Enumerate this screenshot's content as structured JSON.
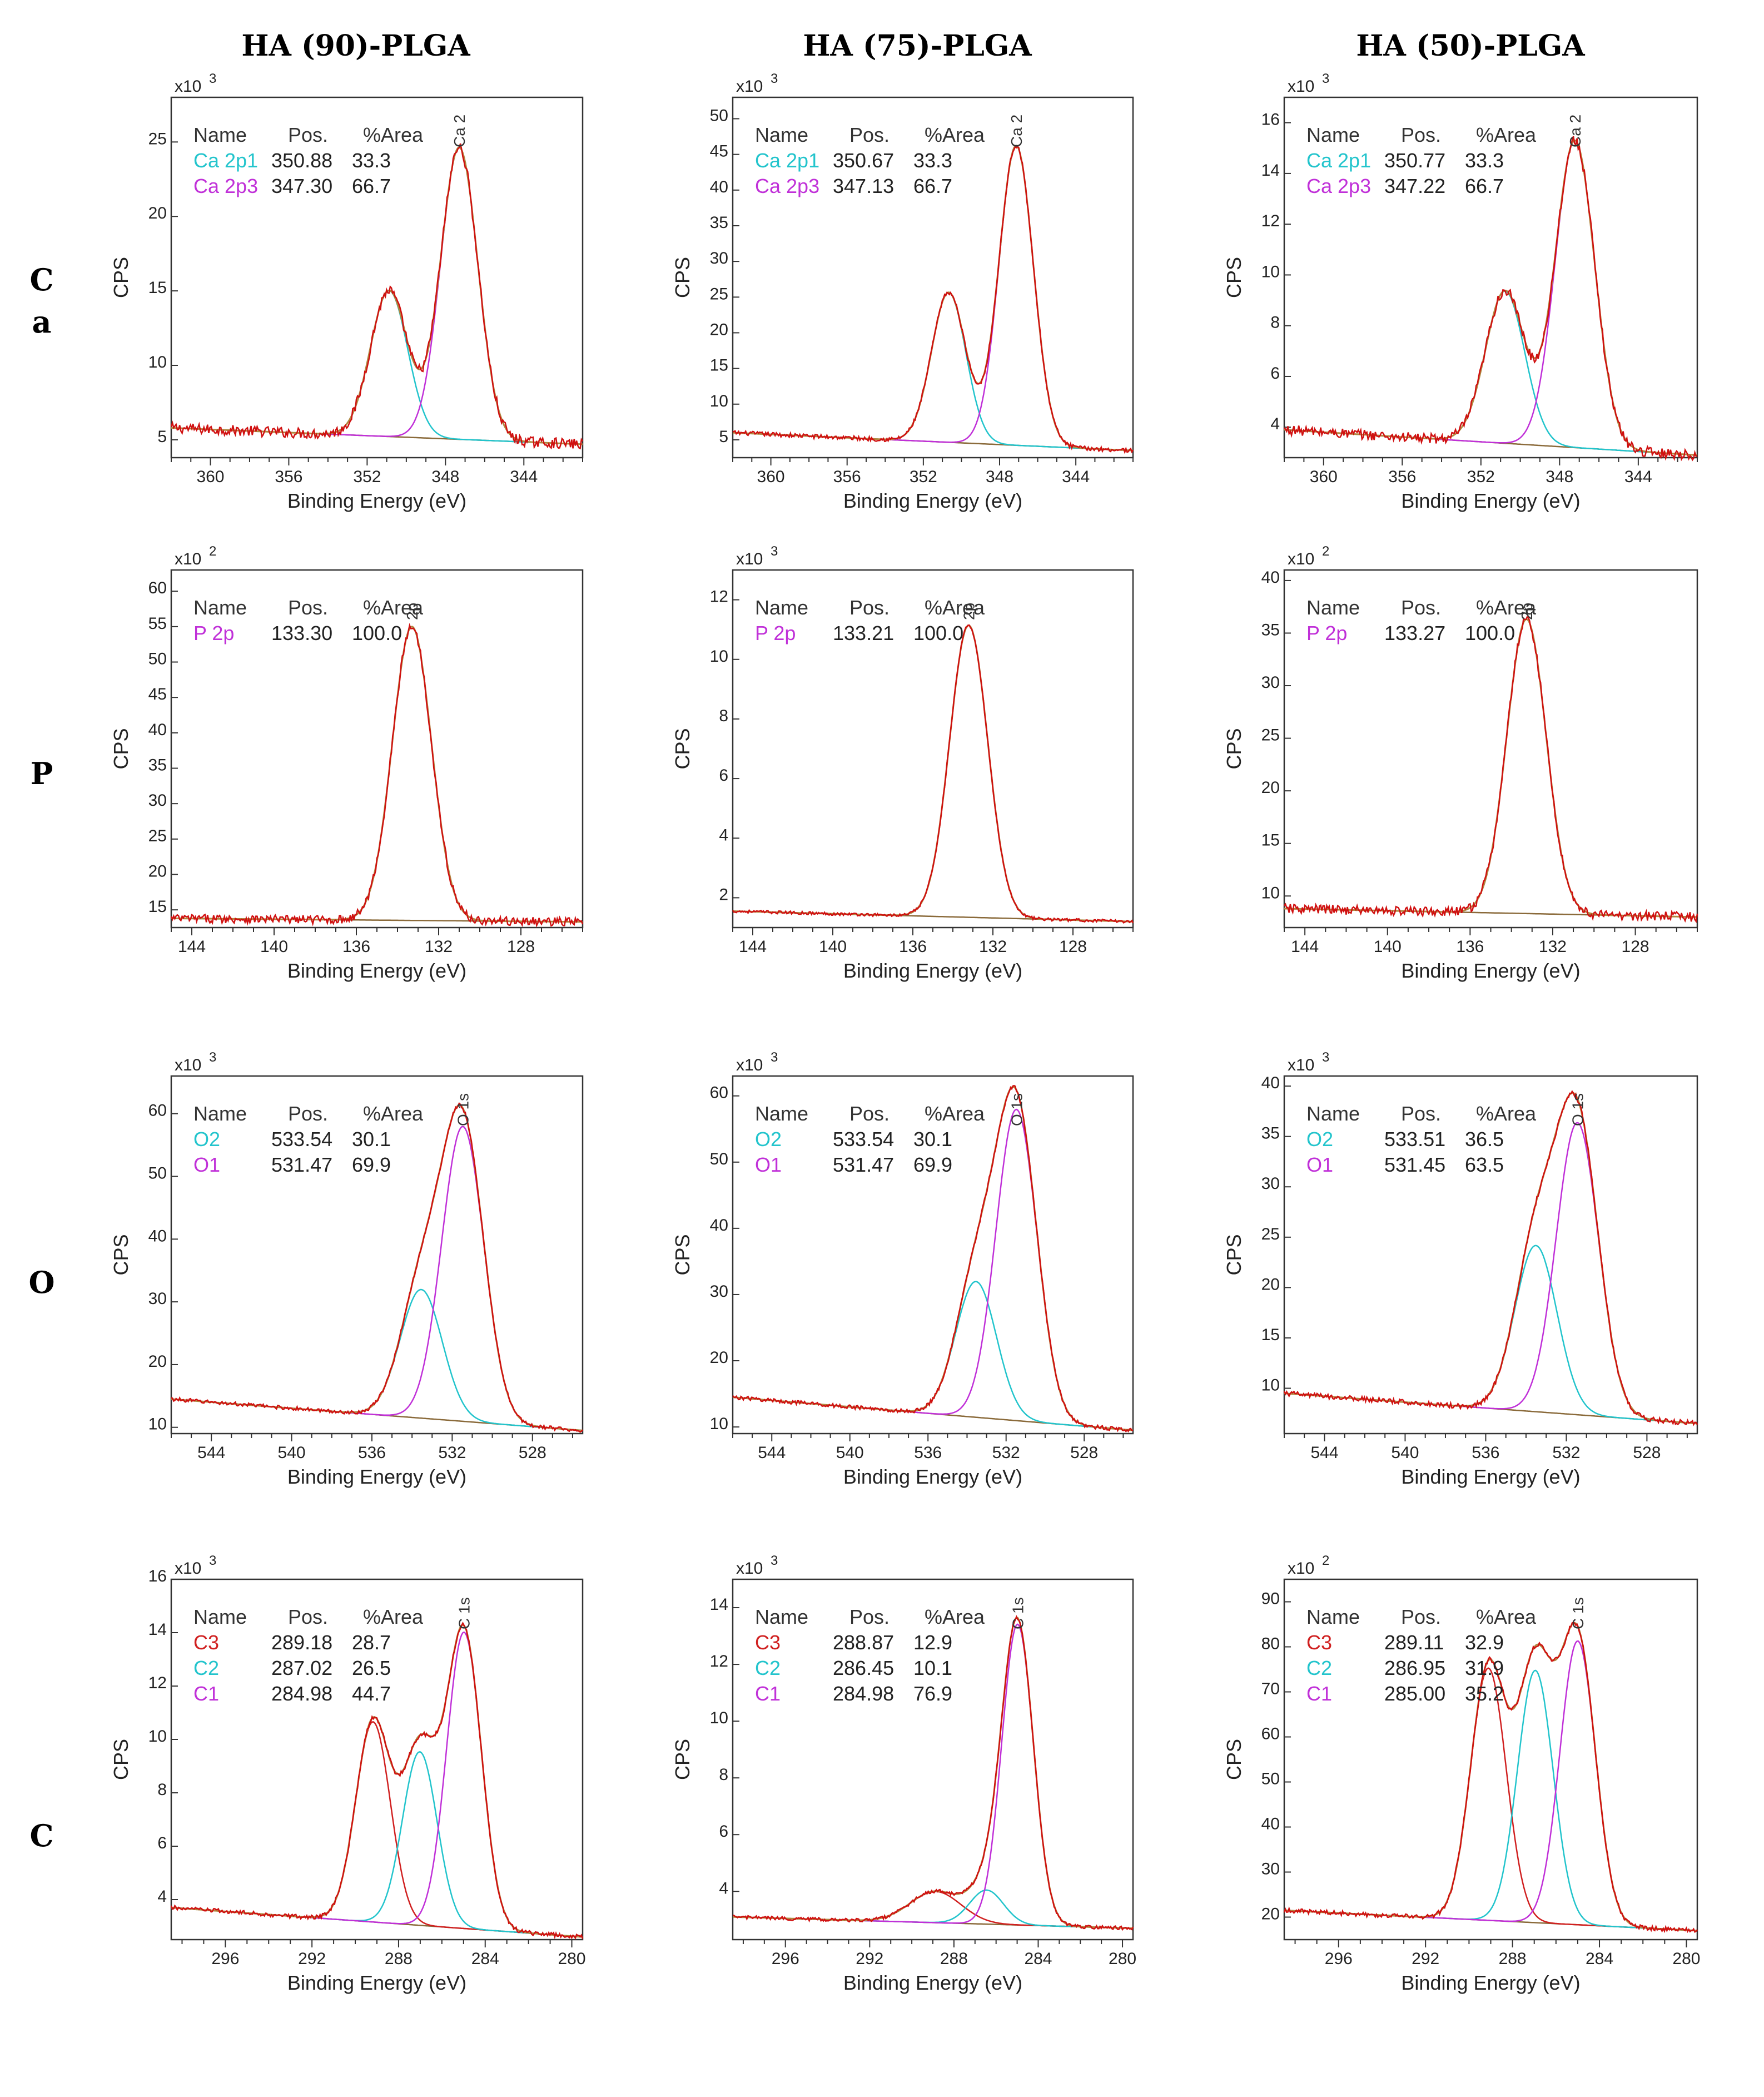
{
  "column_titles": [
    "HA (90)-PLGA",
    "HA (75)-PLGA",
    "HA (50)-PLGA"
  ],
  "row_labels": [
    [
      "C",
      "a"
    ],
    [
      "P"
    ],
    [
      "O"
    ],
    [
      "C"
    ]
  ],
  "colors": {
    "background": "#ffffff",
    "data": "#d01010",
    "envelope": "#b08840",
    "baseline": "#8a6a3a",
    "cyan": "#22c4cc",
    "magenta": "#c030d8",
    "red": "#d02020",
    "axis": "#333333",
    "header": "#333333"
  },
  "legend_headers": [
    "Name",
    "Pos.",
    "%Area"
  ],
  "chart_data": [
    {
      "id": "ca-90",
      "row": 0,
      "col": 0,
      "type": "line",
      "xlabel": "Binding Energy (eV)",
      "ylabel": "CPS",
      "multiplier": "x10",
      "exp": "3",
      "xlim": [
        362,
        341
      ],
      "xticks": [
        360,
        356,
        352,
        348,
        344
      ],
      "ylim": [
        3.8,
        28
      ],
      "yticks": [
        5,
        10,
        15,
        20,
        25
      ],
      "peak_label": "Ca 2",
      "peak_label_x": 347.3,
      "baseline": [
        5.8,
        4.7
      ],
      "noise": 0.35,
      "components": [
        {
          "name": "Ca 2p1",
          "pos": "350.88",
          "area": "33.3",
          "color": "#22c4cc",
          "center": 350.88,
          "height": 9.8,
          "width": 0.95
        },
        {
          "name": "Ca 2p3",
          "pos": "347.30",
          "area": "66.7",
          "color": "#c030d8",
          "center": 347.3,
          "height": 19.6,
          "width": 0.95
        }
      ]
    },
    {
      "id": "ca-75",
      "row": 0,
      "col": 1,
      "type": "line",
      "xlabel": "Binding Energy (eV)",
      "ylabel": "CPS",
      "multiplier": "x10",
      "exp": "3",
      "xlim": [
        362,
        341
      ],
      "xticks": [
        360,
        356,
        352,
        348,
        344
      ],
      "ylim": [
        2.5,
        53
      ],
      "yticks": [
        5,
        10,
        15,
        20,
        25,
        30,
        35,
        40,
        45,
        50
      ],
      "peak_label": "Ca 2",
      "peak_label_x": 347.13,
      "baseline": [
        6,
        3.5
      ],
      "noise": 0.3,
      "components": [
        {
          "name": "Ca 2p1",
          "pos": "350.67",
          "area": "33.3",
          "color": "#22c4cc",
          "center": 350.67,
          "height": 21,
          "width": 0.9
        },
        {
          "name": "Ca 2p3",
          "pos": "347.13",
          "area": "66.7",
          "color": "#c030d8",
          "center": 347.13,
          "height": 42,
          "width": 0.9
        }
      ]
    },
    {
      "id": "ca-50",
      "row": 0,
      "col": 2,
      "type": "line",
      "xlabel": "Binding Energy (eV)",
      "ylabel": "CPS",
      "multiplier": "x10",
      "exp": "3",
      "xlim": [
        362,
        341
      ],
      "xticks": [
        360,
        356,
        352,
        348,
        344
      ],
      "ylim": [
        2.8,
        17
      ],
      "yticks": [
        4,
        6,
        8,
        10,
        12,
        14,
        16
      ],
      "peak_label": "Ca 2",
      "peak_label_x": 347.22,
      "baseline": [
        3.9,
        2.9
      ],
      "noise": 0.2,
      "components": [
        {
          "name": "Ca 2p1",
          "pos": "350.77",
          "area": "33.3",
          "color": "#22c4cc",
          "center": 350.77,
          "height": 6.0,
          "width": 1.0
        },
        {
          "name": "Ca 2p3",
          "pos": "347.22",
          "area": "66.7",
          "color": "#c030d8",
          "center": 347.22,
          "height": 12.1,
          "width": 1.0
        }
      ]
    },
    {
      "id": "p-90",
      "row": 1,
      "col": 0,
      "type": "line",
      "xlabel": "Binding Energy (eV)",
      "ylabel": "CPS",
      "multiplier": "x10",
      "exp": "2",
      "xlim": [
        145,
        125
      ],
      "xticks": [
        144,
        140,
        136,
        132,
        128
      ],
      "ylim": [
        12.5,
        63
      ],
      "yticks": [
        15,
        20,
        25,
        30,
        35,
        40,
        45,
        50,
        55,
        60
      ],
      "peak_label": "2p",
      "peak_label_x": 133.3,
      "baseline": [
        13.8,
        13.3
      ],
      "noise": 0.6,
      "components": [
        {
          "name": "P 2p",
          "pos": "133.30",
          "area": "100.0",
          "color": "#c030d8",
          "center": 133.3,
          "height": 41.5,
          "width": 0.95
        }
      ]
    },
    {
      "id": "p-75",
      "row": 1,
      "col": 1,
      "type": "line",
      "xlabel": "Binding Energy (eV)",
      "ylabel": "CPS",
      "multiplier": "x10",
      "exp": "3",
      "xlim": [
        145,
        125
      ],
      "xticks": [
        144,
        140,
        136,
        132,
        128
      ],
      "ylim": [
        1.0,
        13
      ],
      "yticks": [
        2,
        4,
        6,
        8,
        10,
        12
      ],
      "peak_label": "2p",
      "peak_label_x": 133.21,
      "baseline": [
        1.55,
        1.2
      ],
      "noise": 0.05,
      "components": [
        {
          "name": "P 2p",
          "pos": "133.21",
          "area": "100.0",
          "color": "#c030d8",
          "center": 133.21,
          "height": 9.8,
          "width": 0.95
        }
      ]
    },
    {
      "id": "p-50",
      "row": 1,
      "col": 2,
      "type": "line",
      "xlabel": "Binding Energy (eV)",
      "ylabel": "CPS",
      "multiplier": "x10",
      "exp": "2",
      "xlim": [
        145,
        125
      ],
      "xticks": [
        144,
        140,
        136,
        132,
        128
      ],
      "ylim": [
        7.0,
        41
      ],
      "yticks": [
        10,
        15,
        20,
        25,
        30,
        35,
        40
      ],
      "peak_label": "2p",
      "peak_label_x": 133.27,
      "baseline": [
        8.8,
        8.0
      ],
      "noise": 0.45,
      "components": [
        {
          "name": "P 2p",
          "pos": "133.27",
          "area": "100.0",
          "color": "#c030d8",
          "center": 133.27,
          "height": 28,
          "width": 0.95
        }
      ]
    },
    {
      "id": "o-90",
      "row": 2,
      "col": 0,
      "type": "line",
      "xlabel": "Binding Energy (eV)",
      "ylabel": "CPS",
      "multiplier": "x10",
      "exp": "3",
      "xlim": [
        546,
        525.5
      ],
      "xticks": [
        544,
        540,
        536,
        532,
        528
      ],
      "ylim": [
        9,
        66
      ],
      "yticks": [
        10,
        20,
        30,
        40,
        50,
        60
      ],
      "peak_label": "O 1s",
      "peak_label_x": 531.47,
      "baseline": [
        14.5,
        9.5
      ],
      "noise": 0.3,
      "components": [
        {
          "name": "O2",
          "pos": "533.54",
          "area": "30.1",
          "color": "#22c4cc",
          "center": 533.54,
          "height": 20.5,
          "width": 1.05
        },
        {
          "name": "O1",
          "pos": "531.47",
          "area": "69.9",
          "color": "#c030d8",
          "center": 531.47,
          "height": 47,
          "width": 1.05
        }
      ]
    },
    {
      "id": "o-75",
      "row": 2,
      "col": 1,
      "type": "line",
      "xlabel": "Binding Energy (eV)",
      "ylabel": "CPS",
      "multiplier": "x10",
      "exp": "3",
      "xlim": [
        546,
        525.5
      ],
      "xticks": [
        544,
        540,
        536,
        532,
        528
      ],
      "ylim": [
        9,
        63
      ],
      "yticks": [
        10,
        20,
        30,
        40,
        50,
        60
      ],
      "peak_label": "O 1s",
      "peak_label_x": 531.47,
      "baseline": [
        14.5,
        9.5
      ],
      "noise": 0.3,
      "components": [
        {
          "name": "O2",
          "pos": "533.54",
          "area": "30.1",
          "color": "#22c4cc",
          "center": 533.54,
          "height": 20.5,
          "width": 1.05
        },
        {
          "name": "O1",
          "pos": "531.47",
          "area": "69.9",
          "color": "#c030d8",
          "center": 531.47,
          "height": 47,
          "width": 1.05
        }
      ]
    },
    {
      "id": "o-50",
      "row": 2,
      "col": 2,
      "type": "line",
      "xlabel": "Binding Energy (eV)",
      "ylabel": "CPS",
      "multiplier": "x10",
      "exp": "3",
      "xlim": [
        546,
        525.5
      ],
      "xticks": [
        544,
        540,
        536,
        532,
        528
      ],
      "ylim": [
        5.5,
        41
      ],
      "yticks": [
        10,
        15,
        20,
        25,
        30,
        35,
        40
      ],
      "peak_label": "O 1s",
      "peak_label_x": 531.45,
      "baseline": [
        9.5,
        6.5
      ],
      "noise": 0.25,
      "components": [
        {
          "name": "O2",
          "pos": "533.51",
          "area": "36.5",
          "color": "#22c4cc",
          "center": 533.51,
          "height": 16.5,
          "width": 1.05
        },
        {
          "name": "O1",
          "pos": "531.45",
          "area": "63.5",
          "color": "#c030d8",
          "center": 531.45,
          "height": 29,
          "width": 1.05
        }
      ]
    },
    {
      "id": "c-90",
      "row": 3,
      "col": 0,
      "type": "line",
      "xlabel": "Binding Energy (eV)",
      "ylabel": "CPS",
      "multiplier": "x10",
      "exp": "3",
      "xlim": [
        298.5,
        279.5
      ],
      "xticks": [
        296,
        292,
        288,
        284,
        280
      ],
      "ylim": [
        2.5,
        16
      ],
      "yticks": [
        4,
        6,
        8,
        10,
        12,
        14,
        16
      ],
      "peak_label": "C 1s",
      "peak_label_x": 284.98,
      "baseline": [
        3.7,
        2.6
      ],
      "noise": 0.08,
      "components": [
        {
          "name": "C3",
          "pos": "289.18",
          "area": "28.7",
          "color": "#d02020",
          "center": 289.18,
          "height": 7.5,
          "width": 0.8
        },
        {
          "name": "C2",
          "pos": "287.02",
          "area": "26.5",
          "color": "#22c4cc",
          "center": 287.02,
          "height": 6.5,
          "width": 0.8
        },
        {
          "name": "C1",
          "pos": "284.98",
          "area": "44.7",
          "color": "#c030d8",
          "center": 284.98,
          "height": 11.1,
          "width": 0.8
        }
      ]
    },
    {
      "id": "c-75",
      "row": 3,
      "col": 1,
      "type": "line",
      "xlabel": "Binding Energy (eV)",
      "ylabel": "CPS",
      "multiplier": "x10",
      "exp": "3",
      "xlim": [
        298.5,
        279.5
      ],
      "xticks": [
        296,
        292,
        288,
        284,
        280
      ],
      "ylim": [
        2.3,
        15
      ],
      "yticks": [
        4,
        6,
        8,
        10,
        12,
        14
      ],
      "peak_label": "C 1s",
      "peak_label_x": 284.98,
      "baseline": [
        3.1,
        2.7
      ],
      "noise": 0.06,
      "components": [
        {
          "name": "C3",
          "pos": "288.87",
          "area": "12.9",
          "color": "#d02020",
          "center": 288.87,
          "height": 1.1,
          "width": 1.2
        },
        {
          "name": "C2",
          "pos": "286.45",
          "area": "10.1",
          "color": "#22c4cc",
          "center": 286.45,
          "height": 1.2,
          "width": 0.8
        },
        {
          "name": "C1",
          "pos": "284.98",
          "area": "76.9",
          "color": "#c030d8",
          "center": 284.98,
          "height": 10.6,
          "width": 0.75
        }
      ]
    },
    {
      "id": "c-50",
      "row": 3,
      "col": 2,
      "type": "line",
      "xlabel": "Binding Energy (eV)",
      "ylabel": "CPS",
      "multiplier": "x10",
      "exp": "2",
      "xlim": [
        298.5,
        279.5
      ],
      "xticks": [
        296,
        292,
        288,
        284,
        280
      ],
      "ylim": [
        15,
        95
      ],
      "yticks": [
        20,
        30,
        40,
        50,
        60,
        70,
        80,
        90
      ],
      "peak_label": "C 1s",
      "peak_label_x": 285.0,
      "baseline": [
        21.5,
        17
      ],
      "noise": 0.5,
      "components": [
        {
          "name": "C3",
          "pos": "289.11",
          "area": "32.9",
          "color": "#d02020",
          "center": 289.11,
          "height": 56,
          "width": 0.82
        },
        {
          "name": "C2",
          "pos": "286.95",
          "area": "31.9",
          "color": "#22c4cc",
          "center": 286.95,
          "height": 56,
          "width": 0.82
        },
        {
          "name": "C1",
          "pos": "285.00",
          "area": "35.2",
          "color": "#c030d8",
          "center": 285.0,
          "height": 63,
          "width": 0.82
        }
      ]
    }
  ]
}
